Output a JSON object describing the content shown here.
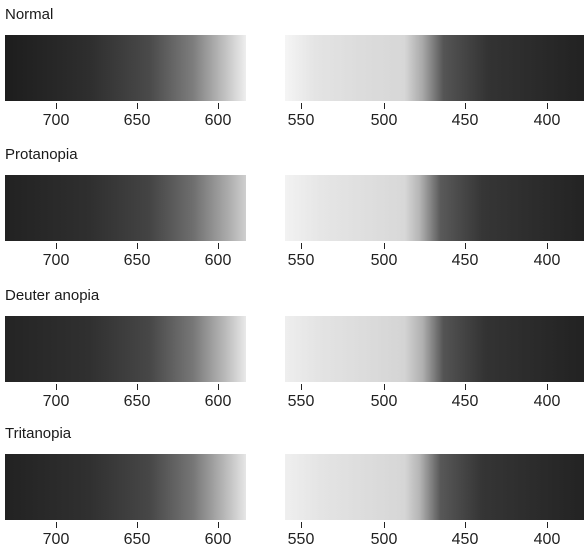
{
  "figure": {
    "tick_labels": [
      "700",
      "650",
      "600",
      "550",
      "500",
      "450",
      "400"
    ],
    "panels": [
      {
        "title": "Normal"
      },
      {
        "title": "Protanopia"
      },
      {
        "title": "Deuter anopia"
      },
      {
        "title": "Tritanopia"
      }
    ]
  },
  "chart_data": [
    {
      "type": "spectrum",
      "title": "Normal",
      "x_ticks": [
        700,
        650,
        600,
        550,
        500,
        450,
        400
      ],
      "x_range": [
        730,
        385
      ]
    },
    {
      "type": "spectrum",
      "title": "Protanopia",
      "x_ticks": [
        700,
        650,
        600,
        550,
        500,
        450,
        400
      ],
      "x_range": [
        730,
        385
      ]
    },
    {
      "type": "spectrum",
      "title": "Deuter anopia",
      "x_ticks": [
        700,
        650,
        600,
        550,
        500,
        450,
        400
      ],
      "x_range": [
        730,
        385
      ]
    },
    {
      "type": "spectrum",
      "title": "Tritanopia",
      "x_ticks": [
        700,
        650,
        600,
        550,
        500,
        450,
        400
      ],
      "x_range": [
        730,
        385
      ]
    }
  ]
}
